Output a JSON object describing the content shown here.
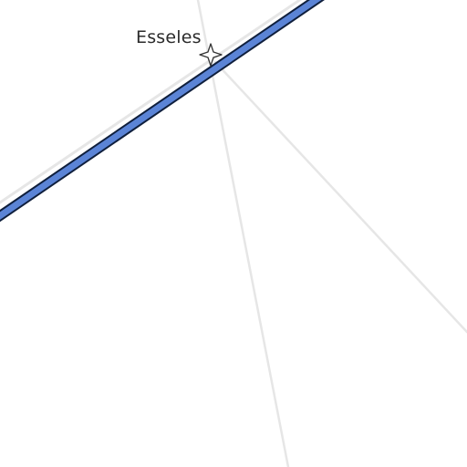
{
  "map": {
    "place": {
      "name": "Esseles",
      "marker_icon": "four-point-star-icon"
    },
    "colors": {
      "background": "#ffffff",
      "road_primary_fill": "#5b84d6",
      "road_primary_casing": "#0f1f3d",
      "road_minor": "#e6e6e6",
      "marker_stroke": "#333333"
    }
  }
}
